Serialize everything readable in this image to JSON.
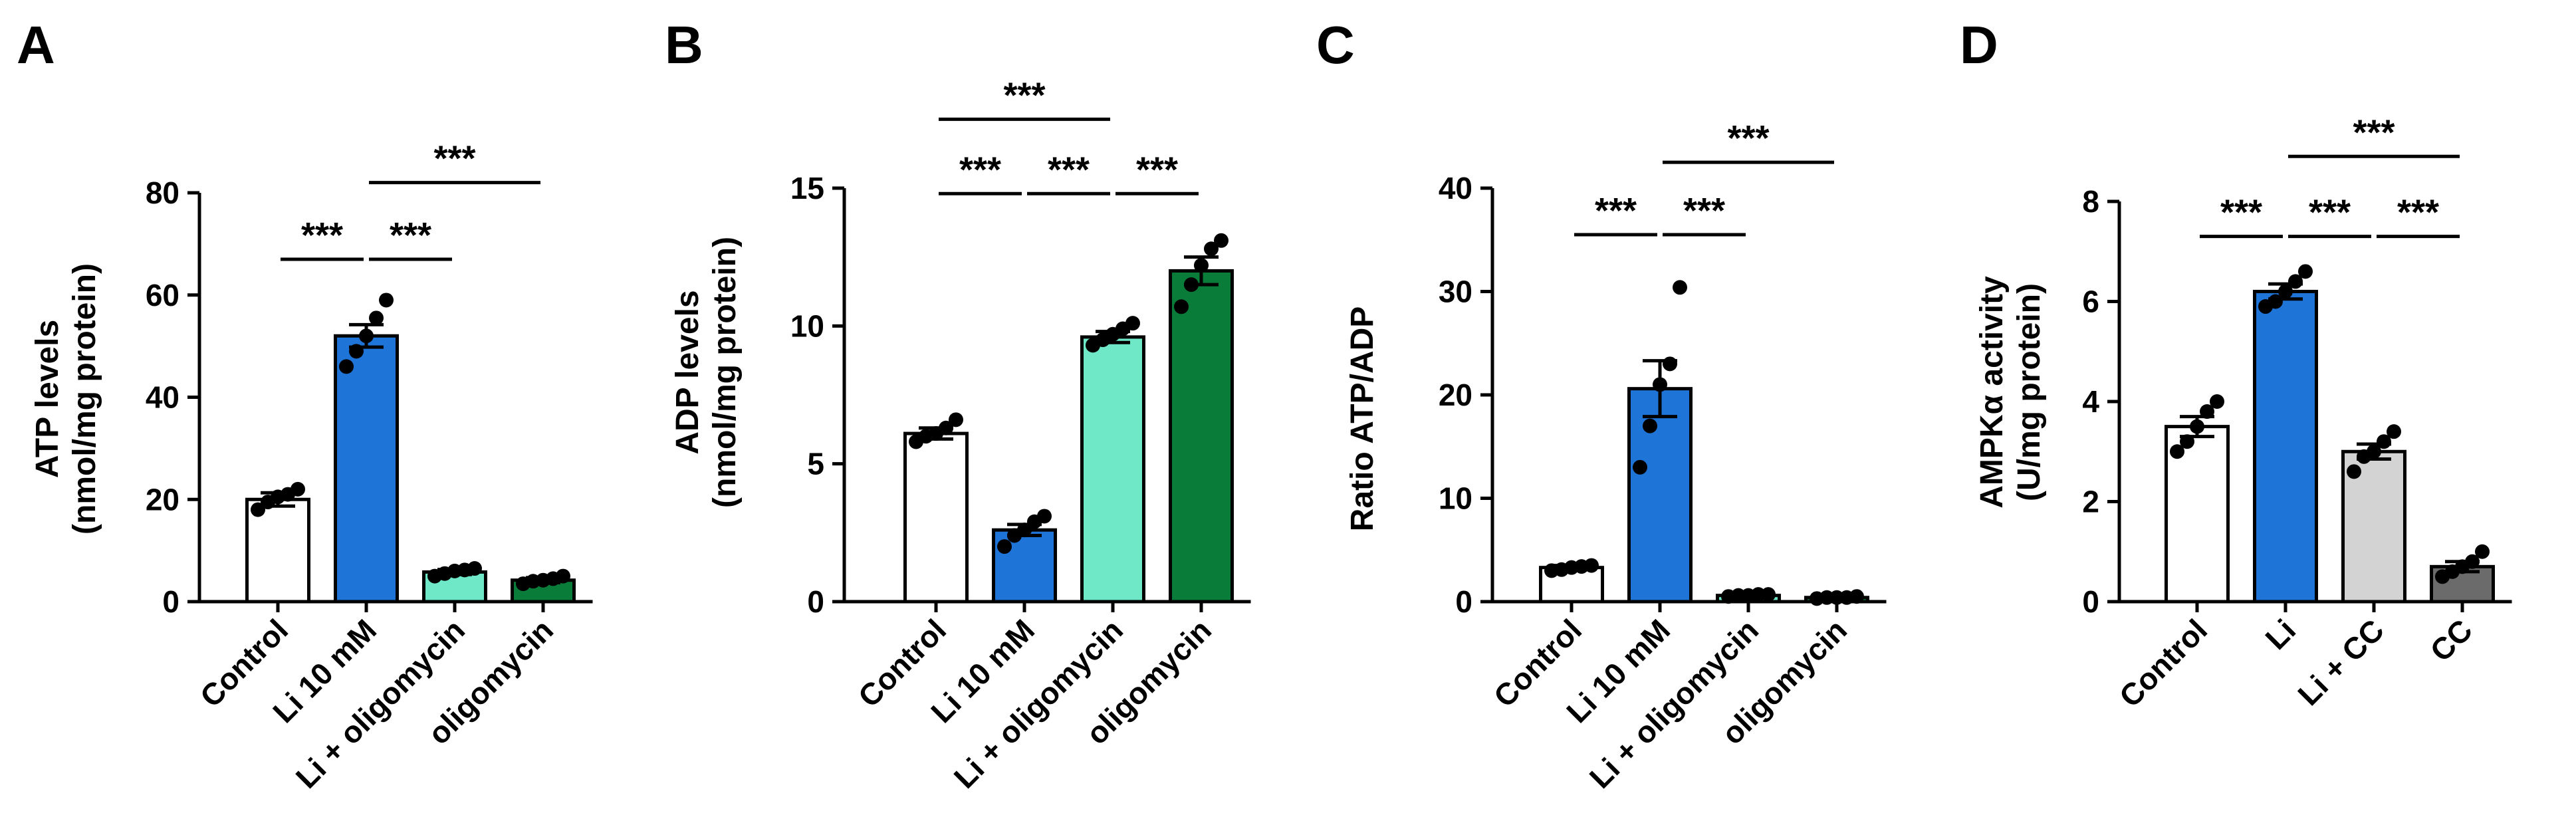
{
  "chart_data": [
    {
      "panel": "A",
      "type": "bar",
      "categories": [
        "Control",
        "Li 10 mM",
        "Li + oligomycin",
        "oligomycin"
      ],
      "values": [
        20,
        52,
        5.8,
        4.2
      ],
      "errors": [
        1.3,
        2.2,
        0.5,
        0.5
      ],
      "points": [
        [
          18,
          19.5,
          20.5,
          21,
          22
        ],
        [
          46,
          49,
          52,
          55.5,
          59
        ],
        [
          5,
          5.5,
          6,
          6.2,
          6.5
        ],
        [
          3.5,
          4,
          4.2,
          4.5,
          5
        ]
      ],
      "colors": [
        "#ffffff",
        "#1f74d8",
        "#6fe8c8",
        "#0a7c3a"
      ],
      "ylabel_lines": [
        "ATP levels",
        "(nmol/mg protein)"
      ],
      "ylim": [
        0,
        80
      ],
      "yticks": [
        "0",
        "20",
        "40",
        "60",
        "80"
      ],
      "significance": [
        {
          "from": 0,
          "to": 1,
          "label": "***",
          "y": 67
        },
        {
          "from": 1,
          "to": 2,
          "label": "***",
          "y": 67
        },
        {
          "from": 1,
          "to": 3,
          "label": "***",
          "y": 82
        }
      ]
    },
    {
      "panel": "B",
      "type": "bar",
      "categories": [
        "Control",
        "Li 10 mM",
        "Li + oligomycin",
        "oligomycin"
      ],
      "values": [
        6.1,
        2.6,
        9.6,
        12.0
      ],
      "errors": [
        0.2,
        0.2,
        0.2,
        0.5
      ],
      "points": [
        [
          5.8,
          6.0,
          6.1,
          6.3,
          6.6
        ],
        [
          2.0,
          2.4,
          2.6,
          2.9,
          3.1
        ],
        [
          9.3,
          9.5,
          9.7,
          9.9,
          10.1
        ],
        [
          10.7,
          11.5,
          12.2,
          12.8,
          13.1
        ]
      ],
      "colors": [
        "#ffffff",
        "#1f74d8",
        "#6fe8c8",
        "#0a7c3a"
      ],
      "ylabel_lines": [
        "ADP levels",
        "(nmol/mg protein)"
      ],
      "ylim": [
        0,
        15
      ],
      "yticks": [
        "0",
        "5",
        "10",
        "15"
      ],
      "significance": [
        {
          "from": 0,
          "to": 1,
          "label": "***",
          "y": 14.8
        },
        {
          "from": 1,
          "to": 2,
          "label": "***",
          "y": 14.8
        },
        {
          "from": 2,
          "to": 3,
          "label": "***",
          "y": 14.8
        },
        {
          "from": 0,
          "to": 2,
          "label": "***",
          "y": 17.5
        }
      ]
    },
    {
      "panel": "C",
      "type": "bar",
      "categories": [
        "Control",
        "Li 10 mM",
        "Li + oligomycin",
        "oligomycin"
      ],
      "values": [
        3.3,
        20.6,
        0.6,
        0.4
      ],
      "errors": [
        0.2,
        2.7,
        0.1,
        0.1
      ],
      "points": [
        [
          3.0,
          3.1,
          3.3,
          3.4,
          3.5
        ],
        [
          13,
          17,
          21,
          23,
          30.4
        ],
        [
          0.5,
          0.6,
          0.6,
          0.7,
          0.7
        ],
        [
          0.3,
          0.4,
          0.4,
          0.4,
          0.5
        ]
      ],
      "colors": [
        "#ffffff",
        "#1f74d8",
        "#6fe8c8",
        "#0a7c3a"
      ],
      "ylabel_lines": [
        "Ratio ATP/ADP"
      ],
      "ylim": [
        0,
        40
      ],
      "yticks": [
        "0",
        "10",
        "20",
        "30",
        "40"
      ],
      "significance": [
        {
          "from": 0,
          "to": 1,
          "label": "***",
          "y": 35.5
        },
        {
          "from": 1,
          "to": 2,
          "label": "***",
          "y": 35.5
        },
        {
          "from": 1,
          "to": 3,
          "label": "***",
          "y": 42.5
        }
      ]
    },
    {
      "panel": "D",
      "type": "bar",
      "categories": [
        "Control",
        "Li",
        "Li + CC",
        "CC"
      ],
      "values": [
        3.5,
        6.2,
        3.0,
        0.7
      ],
      "errors": [
        0.2,
        0.15,
        0.15,
        0.1
      ],
      "points": [
        [
          3.0,
          3.2,
          3.5,
          3.8,
          4.0
        ],
        [
          5.9,
          6.0,
          6.2,
          6.4,
          6.6
        ],
        [
          2.6,
          2.9,
          3.0,
          3.2,
          3.4
        ],
        [
          0.5,
          0.6,
          0.7,
          0.8,
          1.0
        ]
      ],
      "colors": [
        "#ffffff",
        "#1f74d8",
        "#d3d3d3",
        "#6b6b6b"
      ],
      "ylabel_lines": [
        "AMPKα activity",
        "(U/mg  protein)"
      ],
      "ylim": [
        0,
        8
      ],
      "yticks": [
        "0",
        "2",
        "4",
        "6",
        "8"
      ],
      "significance": [
        {
          "from": 0,
          "to": 1,
          "label": "***",
          "y": 7.3
        },
        {
          "from": 1,
          "to": 2,
          "label": "***",
          "y": 7.3
        },
        {
          "from": 2,
          "to": 3,
          "label": "***",
          "y": 7.3
        },
        {
          "from": 1,
          "to": 3,
          "label": "***",
          "y": 8.9
        }
      ]
    }
  ]
}
